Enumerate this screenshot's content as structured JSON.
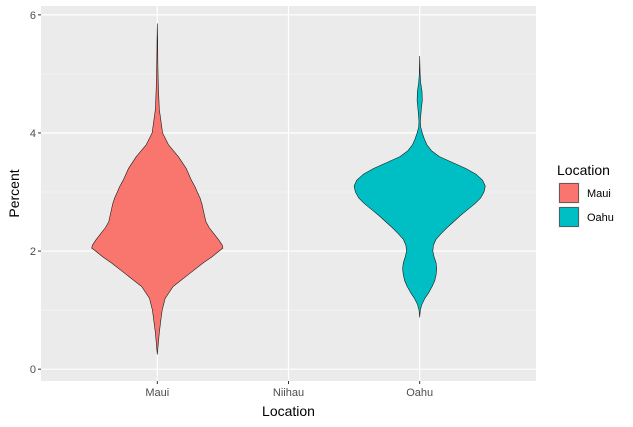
{
  "chart_data": {
    "type": "violin",
    "title": "",
    "xlabel": "Location",
    "ylabel": "Percent",
    "categories": [
      "Maui",
      "Niihau",
      "Oahu"
    ],
    "ylim": [
      0,
      6
    ],
    "yticks": [
      0,
      2,
      4,
      6
    ],
    "grid": true,
    "legend": {
      "title": "Location",
      "position": "right",
      "entries": [
        {
          "label": "Maui",
          "color": "#F8766D"
        },
        {
          "label": "Oahu",
          "color": "#00BFC4"
        }
      ]
    },
    "series": [
      {
        "category": "Maui",
        "color": "#F8766D",
        "range": [
          0.25,
          5.85
        ],
        "profile": [
          [
            0.25,
            0.0
          ],
          [
            0.4,
            0.012
          ],
          [
            0.6,
            0.028
          ],
          [
            0.8,
            0.05
          ],
          [
            1.0,
            0.075
          ],
          [
            1.2,
            0.12
          ],
          [
            1.4,
            0.24
          ],
          [
            1.6,
            0.47
          ],
          [
            1.8,
            0.7
          ],
          [
            1.9,
            0.83
          ],
          [
            2.0,
            0.94
          ],
          [
            2.05,
            1.0
          ],
          [
            2.1,
            0.99
          ],
          [
            2.2,
            0.93
          ],
          [
            2.3,
            0.86
          ],
          [
            2.4,
            0.79
          ],
          [
            2.5,
            0.74
          ],
          [
            2.6,
            0.72
          ],
          [
            2.7,
            0.7
          ],
          [
            2.8,
            0.68
          ],
          [
            2.9,
            0.65
          ],
          [
            3.0,
            0.61
          ],
          [
            3.1,
            0.57
          ],
          [
            3.2,
            0.52
          ],
          [
            3.4,
            0.44
          ],
          [
            3.6,
            0.32
          ],
          [
            3.8,
            0.17
          ],
          [
            4.0,
            0.08
          ],
          [
            4.4,
            0.03
          ],
          [
            4.8,
            0.015
          ],
          [
            5.2,
            0.008
          ],
          [
            5.5,
            0.005
          ],
          [
            5.85,
            0.0
          ]
        ]
      },
      {
        "category": "Oahu",
        "color": "#00BFC4",
        "range": [
          0.88,
          5.3
        ],
        "profile": [
          [
            0.88,
            0.0
          ],
          [
            1.0,
            0.01
          ],
          [
            1.1,
            0.035
          ],
          [
            1.2,
            0.08
          ],
          [
            1.3,
            0.14
          ],
          [
            1.4,
            0.19
          ],
          [
            1.5,
            0.23
          ],
          [
            1.6,
            0.25
          ],
          [
            1.7,
            0.26
          ],
          [
            1.8,
            0.25
          ],
          [
            1.9,
            0.22
          ],
          [
            2.0,
            0.2
          ],
          [
            2.1,
            0.21
          ],
          [
            2.2,
            0.25
          ],
          [
            2.3,
            0.33
          ],
          [
            2.4,
            0.42
          ],
          [
            2.5,
            0.52
          ],
          [
            2.6,
            0.62
          ],
          [
            2.7,
            0.73
          ],
          [
            2.8,
            0.84
          ],
          [
            2.9,
            0.93
          ],
          [
            3.0,
            0.98
          ],
          [
            3.1,
            1.0
          ],
          [
            3.2,
            0.96
          ],
          [
            3.3,
            0.86
          ],
          [
            3.4,
            0.7
          ],
          [
            3.5,
            0.5
          ],
          [
            3.6,
            0.3
          ],
          [
            3.7,
            0.18
          ],
          [
            3.8,
            0.11
          ],
          [
            3.9,
            0.07
          ],
          [
            4.0,
            0.04
          ],
          [
            4.1,
            0.015
          ],
          [
            4.2,
            0.01
          ],
          [
            4.4,
            0.025
          ],
          [
            4.55,
            0.04
          ],
          [
            4.7,
            0.035
          ],
          [
            4.85,
            0.015
          ],
          [
            5.0,
            0.006
          ],
          [
            5.3,
            0.0
          ]
        ]
      }
    ]
  },
  "colors": {
    "panel": "#EBEBEB",
    "grid_major": "#FFFFFF",
    "grid_minor": "#F5F5F5",
    "outline": "#1A1A1A",
    "tick": "#333333"
  }
}
